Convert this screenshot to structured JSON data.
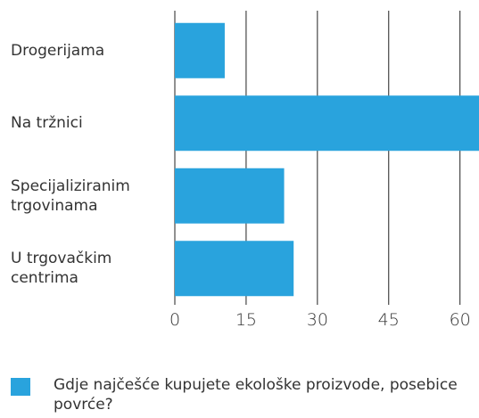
{
  "chart_data": {
    "type": "bar",
    "orientation": "horizontal",
    "categories": [
      "Drogerijama",
      "Na tržnici",
      "Specijaliziranim trgovinama",
      "U trgovačkim centrima"
    ],
    "series": [
      {
        "name": "Gdje najčešće kupujete ekološke proizvode, posebice povrće?",
        "color": "#29a3dd",
        "values": [
          10.5,
          64,
          23,
          25
        ]
      }
    ],
    "xlim": [
      0,
      64
    ],
    "xticks": [
      0,
      15,
      30,
      45,
      60
    ],
    "grid": true,
    "legend": "bottom"
  }
}
